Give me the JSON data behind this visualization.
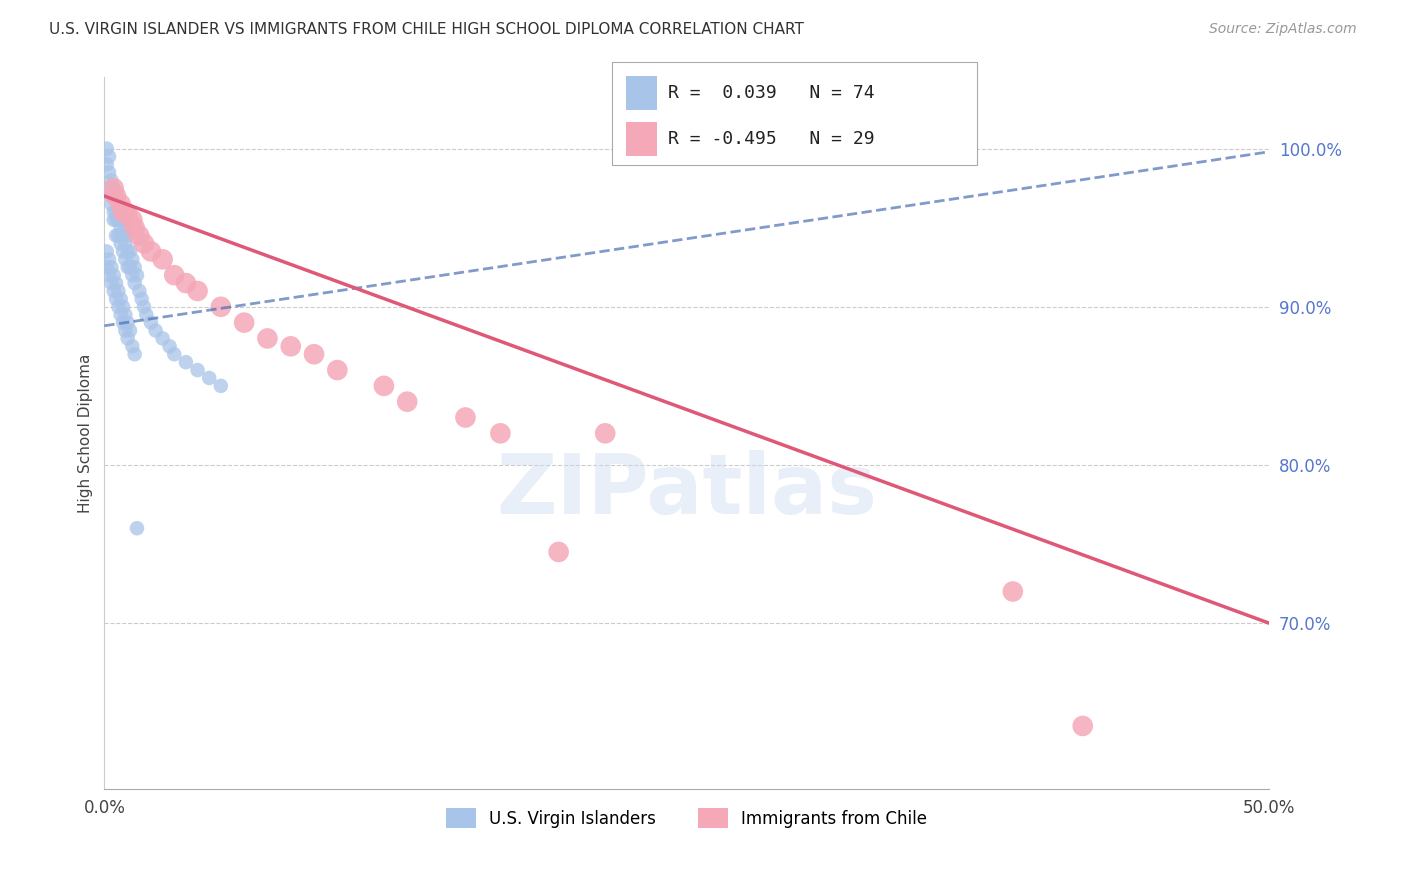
{
  "title": "U.S. VIRGIN ISLANDER VS IMMIGRANTS FROM CHILE HIGH SCHOOL DIPLOMA CORRELATION CHART",
  "source": "Source: ZipAtlas.com",
  "ylabel": "High School Diploma",
  "y_tick_labels": [
    "70.0%",
    "80.0%",
    "90.0%",
    "100.0%"
  ],
  "y_tick_values": [
    0.7,
    0.8,
    0.9,
    1.0
  ],
  "x_range": [
    0.0,
    0.5
  ],
  "y_range": [
    0.595,
    1.045
  ],
  "color_blue": "#a8c4e8",
  "color_pink": "#f4a8b8",
  "color_blue_line": "#4a6fb5",
  "color_pink_line": "#e05878",
  "watermark": "ZIPatlas",
  "blue_x": [
    0.001,
    0.001,
    0.002,
    0.002,
    0.002,
    0.003,
    0.003,
    0.003,
    0.004,
    0.004,
    0.004,
    0.005,
    0.005,
    0.005,
    0.005,
    0.006,
    0.006,
    0.006,
    0.007,
    0.007,
    0.007,
    0.008,
    0.008,
    0.008,
    0.009,
    0.009,
    0.009,
    0.01,
    0.01,
    0.01,
    0.011,
    0.011,
    0.012,
    0.012,
    0.013,
    0.013,
    0.014,
    0.015,
    0.016,
    0.017,
    0.018,
    0.02,
    0.022,
    0.025,
    0.028,
    0.03,
    0.035,
    0.04,
    0.045,
    0.05,
    0.001,
    0.001,
    0.002,
    0.002,
    0.003,
    0.003,
    0.004,
    0.004,
    0.005,
    0.005,
    0.006,
    0.006,
    0.007,
    0.007,
    0.008,
    0.008,
    0.009,
    0.009,
    0.01,
    0.01,
    0.011,
    0.012,
    0.013,
    0.014
  ],
  "blue_y": [
    1.0,
    0.99,
    0.995,
    0.985,
    0.975,
    0.98,
    0.97,
    0.965,
    0.975,
    0.96,
    0.955,
    0.97,
    0.96,
    0.955,
    0.945,
    0.965,
    0.955,
    0.945,
    0.96,
    0.95,
    0.94,
    0.955,
    0.945,
    0.935,
    0.95,
    0.94,
    0.93,
    0.945,
    0.935,
    0.925,
    0.935,
    0.925,
    0.93,
    0.92,
    0.925,
    0.915,
    0.92,
    0.91,
    0.905,
    0.9,
    0.895,
    0.89,
    0.885,
    0.88,
    0.875,
    0.87,
    0.865,
    0.86,
    0.855,
    0.85,
    0.935,
    0.925,
    0.93,
    0.92,
    0.925,
    0.915,
    0.92,
    0.91,
    0.915,
    0.905,
    0.91,
    0.9,
    0.905,
    0.895,
    0.9,
    0.89,
    0.895,
    0.885,
    0.89,
    0.88,
    0.885,
    0.875,
    0.87,
    0.76
  ],
  "pink_x": [
    0.004,
    0.005,
    0.007,
    0.008,
    0.009,
    0.01,
    0.012,
    0.013,
    0.015,
    0.017,
    0.02,
    0.025,
    0.03,
    0.035,
    0.04,
    0.05,
    0.06,
    0.07,
    0.08,
    0.09,
    0.1,
    0.12,
    0.13,
    0.155,
    0.17,
    0.195,
    0.215,
    0.39,
    0.42
  ],
  "pink_y": [
    0.975,
    0.97,
    0.965,
    0.96,
    0.96,
    0.958,
    0.955,
    0.95,
    0.945,
    0.94,
    0.935,
    0.93,
    0.92,
    0.915,
    0.91,
    0.9,
    0.89,
    0.88,
    0.875,
    0.87,
    0.86,
    0.85,
    0.84,
    0.83,
    0.82,
    0.745,
    0.82,
    0.72,
    0.635
  ],
  "blue_trend_x": [
    0.0,
    0.5
  ],
  "blue_trend_y": [
    0.888,
    0.998
  ],
  "pink_trend_x": [
    0.0,
    0.5
  ],
  "pink_trend_y": [
    0.97,
    0.7
  ]
}
